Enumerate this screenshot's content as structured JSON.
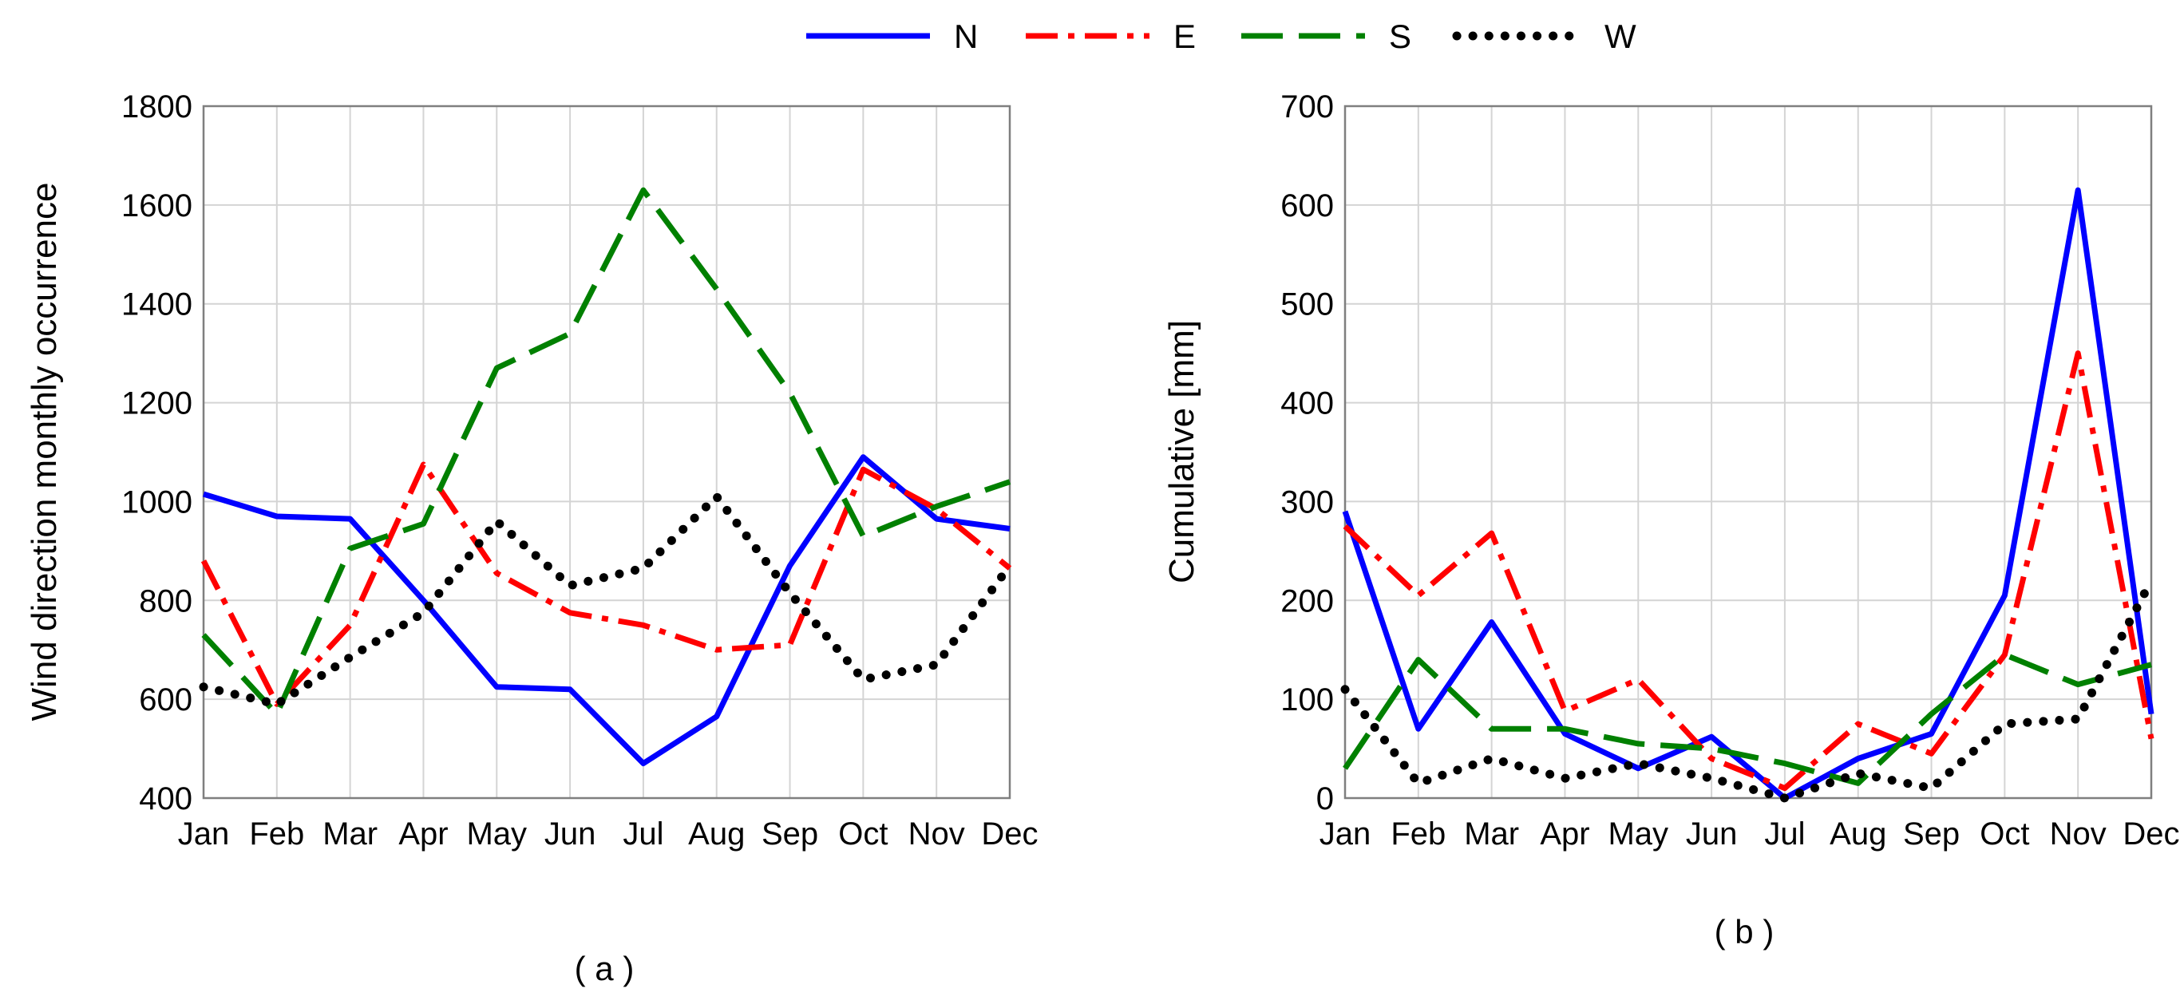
{
  "legend": [
    {
      "name": "N",
      "color": "#0000ff",
      "dash": "solid"
    },
    {
      "name": "E",
      "color": "#ff0000",
      "dash": "dashdot"
    },
    {
      "name": "S",
      "color": "#008000",
      "dash": "dashed"
    },
    {
      "name": "W",
      "color": "#000000",
      "dash": "dotted"
    }
  ],
  "chart_data": [
    {
      "type": "line",
      "title": "",
      "caption": "( a )",
      "xlabel": "",
      "ylabel": "Wind direction monthly occurrence",
      "categories": [
        "Jan",
        "Feb",
        "Mar",
        "Apr",
        "May",
        "Jun",
        "Jul",
        "Aug",
        "Sep",
        "Oct",
        "Nov",
        "Dec"
      ],
      "ylim": [
        400,
        1800
      ],
      "yticks": [
        400,
        600,
        800,
        1000,
        1200,
        1400,
        1600,
        1800
      ],
      "grid": true,
      "series": [
        {
          "name": "N",
          "values": [
            1015,
            970,
            965,
            800,
            625,
            620,
            470,
            565,
            870,
            1090,
            965,
            945
          ]
        },
        {
          "name": "E",
          "values": [
            880,
            590,
            750,
            1075,
            855,
            775,
            750,
            700,
            710,
            1065,
            985,
            865
          ]
        },
        {
          "name": "S",
          "values": [
            730,
            570,
            905,
            955,
            1270,
            1340,
            1630,
            1430,
            1220,
            930,
            990,
            1040
          ]
        },
        {
          "name": "W",
          "values": [
            625,
            590,
            685,
            775,
            960,
            830,
            865,
            1010,
            815,
            640,
            670,
            870
          ]
        }
      ]
    },
    {
      "type": "line",
      "title": "",
      "caption": "( b )",
      "xlabel": "",
      "ylabel": "Cumulative [mm]",
      "categories": [
        "Jan",
        "Feb",
        "Mar",
        "Apr",
        "May",
        "Jun",
        "Jul",
        "Aug",
        "Sep",
        "Oct",
        "Nov",
        "Dec"
      ],
      "ylim": [
        0,
        700
      ],
      "yticks": [
        0,
        100,
        200,
        300,
        400,
        500,
        600,
        700
      ],
      "grid": true,
      "series": [
        {
          "name": "N",
          "values": [
            290,
            70,
            178,
            65,
            30,
            62,
            0,
            40,
            65,
            205,
            615,
            85
          ]
        },
        {
          "name": "E",
          "values": [
            275,
            205,
            268,
            88,
            120,
            40,
            10,
            75,
            45,
            145,
            450,
            60
          ]
        },
        {
          "name": "S",
          "values": [
            30,
            140,
            70,
            70,
            55,
            50,
            35,
            15,
            85,
            145,
            115,
            135
          ]
        },
        {
          "name": "W",
          "values": [
            110,
            15,
            40,
            20,
            35,
            20,
            0,
            25,
            10,
            75,
            80,
            220
          ]
        }
      ]
    }
  ]
}
